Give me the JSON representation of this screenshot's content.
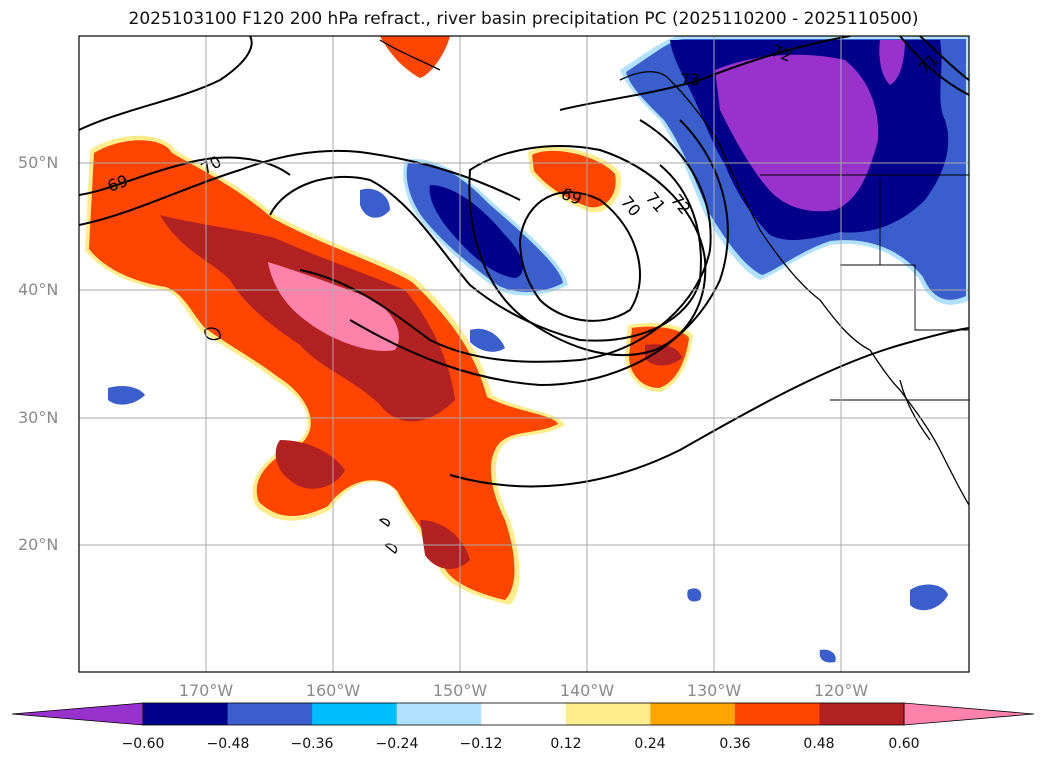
{
  "title": "2025103100 F120 200 hPa refract., river basin precipitation PC (2025110200 - 2025110500)",
  "lat_labels": [
    "50°N",
    "40°N",
    "30°N",
    "20°N"
  ],
  "lon_labels": [
    "170°W",
    "160°W",
    "150°W",
    "140°W",
    "130°W",
    "120°W"
  ],
  "contour_labels": [
    "69",
    "70",
    "69",
    "70",
    "71",
    "72",
    "72",
    "73",
    "71"
  ],
  "colorbar": {
    "ticks": [
      "−0.60",
      "−0.48",
      "−0.36",
      "−0.24",
      "−0.12",
      "0.12",
      "0.24",
      "0.36",
      "0.48",
      "0.60"
    ],
    "colors": [
      "#9932cc",
      "#00008b",
      "#3a5fcd",
      "#00bfff",
      "#b0e2ff",
      "#ffffff",
      "#ffec8b",
      "#ffa500",
      "#ff4500",
      "#b22222",
      "#ff82ab"
    ]
  },
  "field_colors": {
    "purple": "#9932cc",
    "navy": "#00008b",
    "blue": "#3a5fcd",
    "cyan": "#00bfff",
    "lightblue": "#b0e2ff",
    "yellow": "#ffec8b",
    "orange": "#ffa500",
    "redorange": "#ff4500",
    "firebrick": "#b22222",
    "pink": "#ff82ab"
  }
}
